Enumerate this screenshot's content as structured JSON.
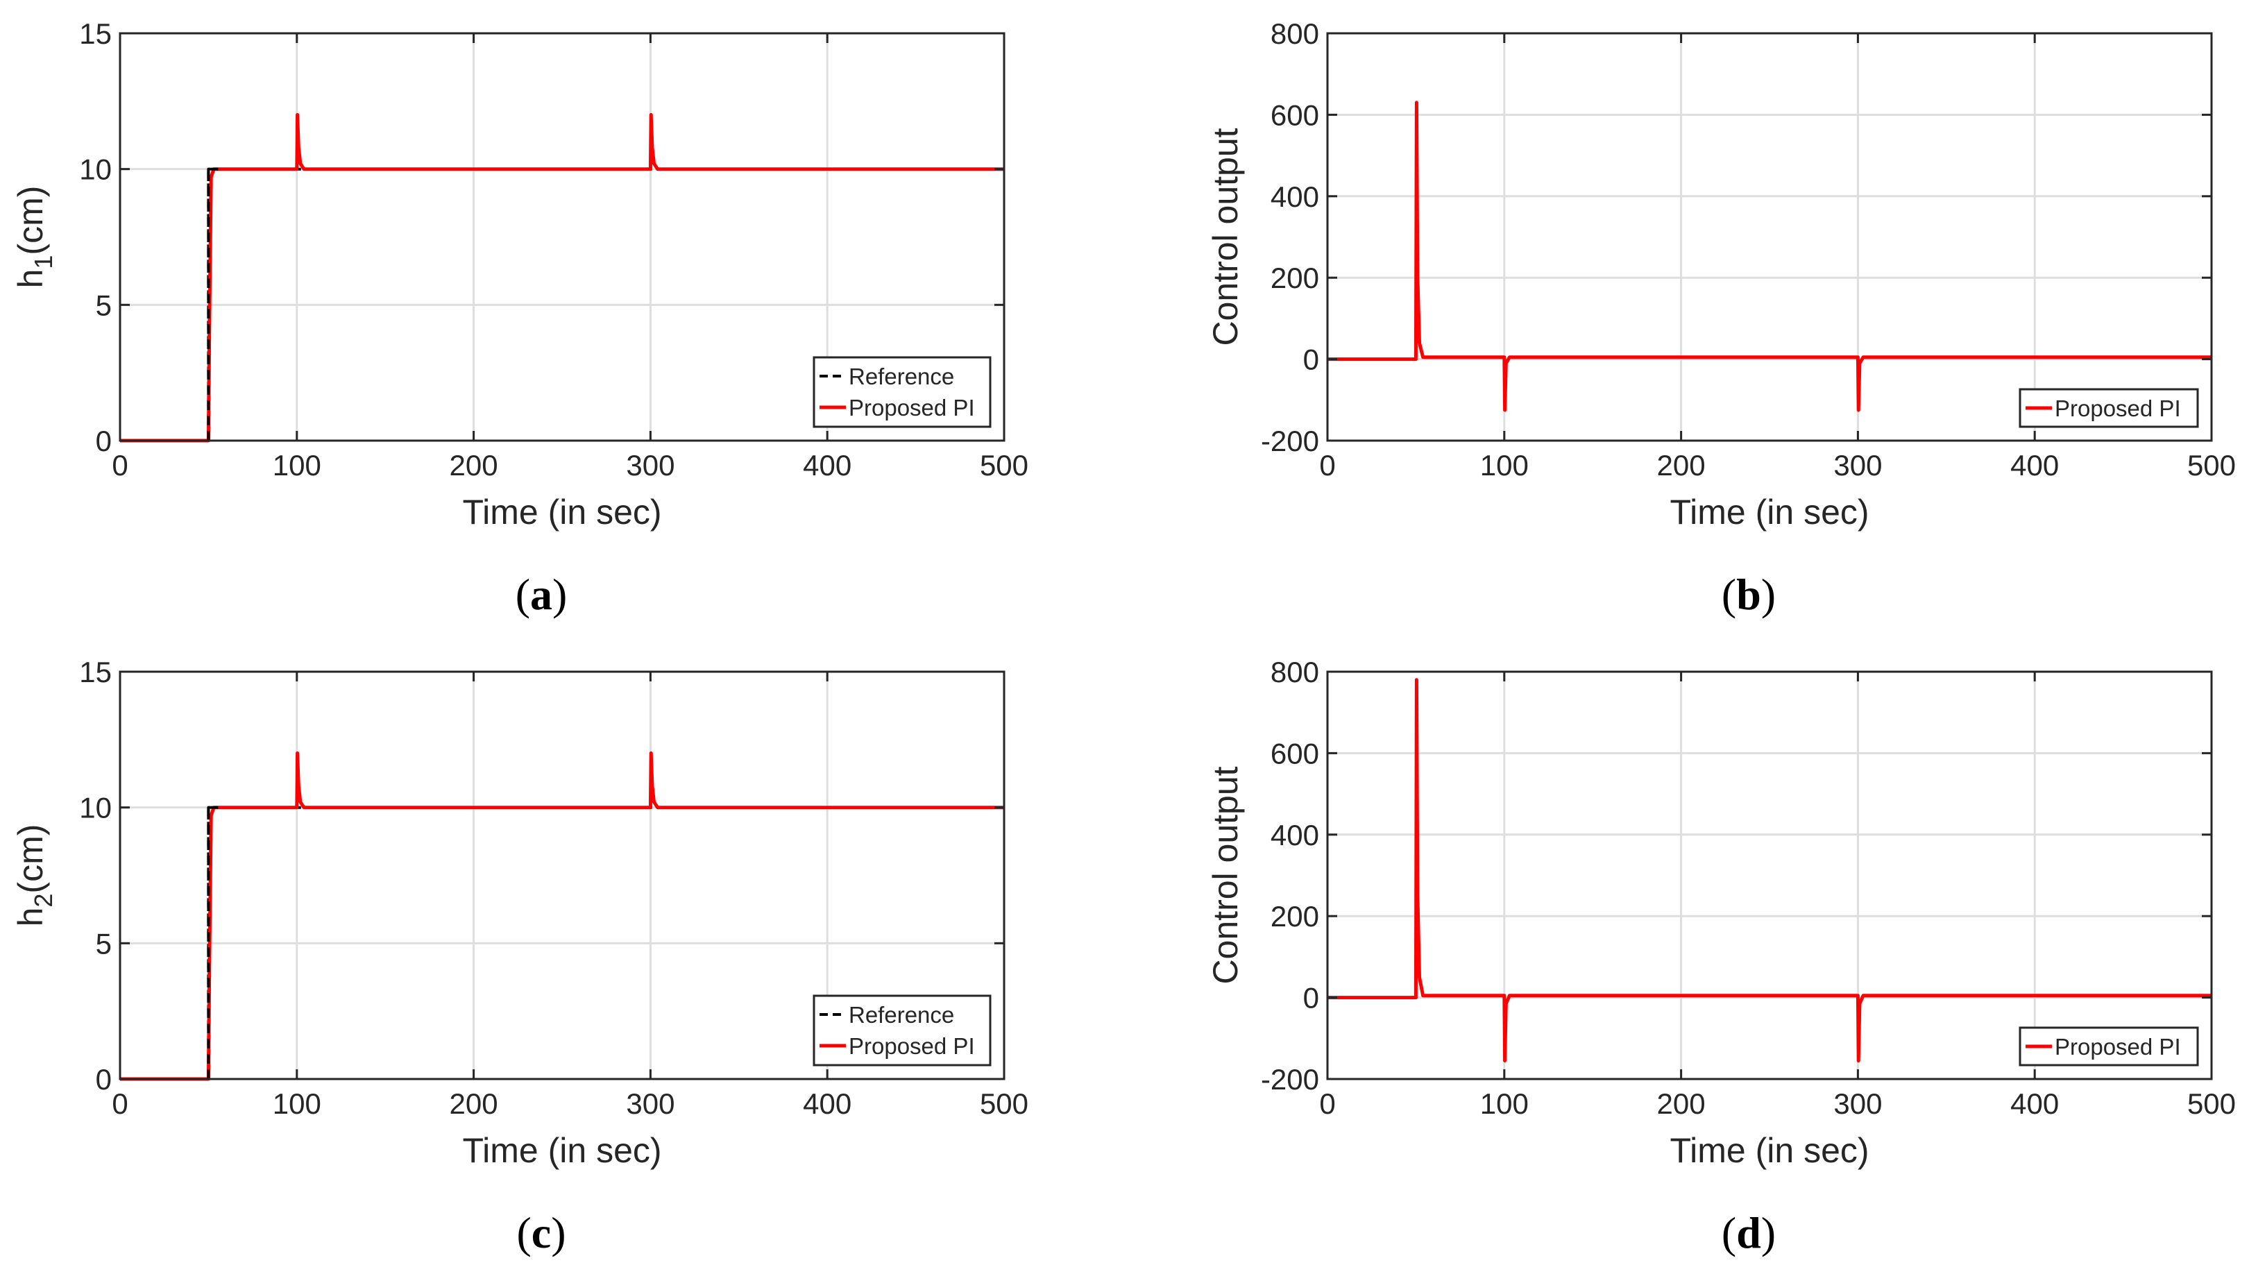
{
  "colors": {
    "reference": "#000000",
    "proposed": "#ff0000",
    "grid": "#dedede",
    "axis": "#262626"
  },
  "chart_data": [
    {
      "panel": "(a)",
      "panel_open": "(",
      "panel_letter": "a",
      "panel_close": ")",
      "type": "line",
      "xlabel": "Time (in sec)",
      "ylabel_main": "h",
      "ylabel_sub": "1",
      "ylabel_unit": "(cm)",
      "xlim": [
        0,
        500
      ],
      "ylim": [
        0,
        15
      ],
      "xticks": [
        "0",
        "100",
        "200",
        "300",
        "400",
        "500"
      ],
      "yticks": [
        "0",
        "5",
        "10",
        "15"
      ],
      "grid": true,
      "legend_position": "bottom-right",
      "series": [
        {
          "name": "Reference",
          "style": "dashed",
          "x": [
            0,
            50,
            50,
            500
          ],
          "y": [
            0,
            0,
            10,
            10
          ]
        },
        {
          "name": "Proposed PI",
          "style": "solid",
          "x": [
            0,
            50,
            50.5,
            51.5,
            53,
            100,
            100.3,
            101,
            102,
            104,
            300,
            300.3,
            301,
            302,
            304,
            500
          ],
          "y": [
            0,
            0,
            4,
            9.7,
            10,
            10,
            12,
            10.8,
            10.2,
            10,
            10,
            12,
            10.8,
            10.2,
            10,
            10
          ]
        }
      ]
    },
    {
      "panel": "(b)",
      "panel_open": "(",
      "panel_letter": "b",
      "panel_close": ")",
      "type": "line",
      "xlabel": "Time (in sec)",
      "ylabel": "Control output",
      "xlim": [
        0,
        500
      ],
      "ylim": [
        -200,
        800
      ],
      "xticks": [
        "0",
        "100",
        "200",
        "300",
        "400",
        "500"
      ],
      "yticks": [
        "-200",
        "0",
        "200",
        "400",
        "600",
        "800"
      ],
      "grid": true,
      "legend_position": "bottom-right",
      "series": [
        {
          "name": "Proposed PI",
          "style": "solid",
          "x": [
            0,
            50,
            50.4,
            51,
            52,
            54,
            100,
            100.3,
            101,
            103,
            300,
            300.3,
            301,
            303,
            500
          ],
          "y": [
            0,
            0,
            630,
            200,
            40,
            5,
            5,
            -125,
            -10,
            5,
            5,
            -125,
            -10,
            5,
            5
          ]
        }
      ]
    },
    {
      "panel": "(c)",
      "panel_open": "(",
      "panel_letter": "c",
      "panel_close": ")",
      "type": "line",
      "xlabel": "Time (in sec)",
      "ylabel_main": "h",
      "ylabel_sub": "2",
      "ylabel_unit": "(cm)",
      "xlim": [
        0,
        500
      ],
      "ylim": [
        0,
        15
      ],
      "xticks": [
        "0",
        "100",
        "200",
        "300",
        "400",
        "500"
      ],
      "yticks": [
        "0",
        "5",
        "10",
        "15"
      ],
      "grid": true,
      "legend_position": "bottom-right",
      "series": [
        {
          "name": "Reference",
          "style": "dashed",
          "x": [
            0,
            50,
            50,
            500
          ],
          "y": [
            0,
            0,
            10,
            10
          ]
        },
        {
          "name": "Proposed PI",
          "style": "solid",
          "x": [
            0,
            50,
            50.5,
            51.5,
            53,
            100,
            100.3,
            101,
            102,
            104,
            300,
            300.3,
            301,
            302,
            304,
            500
          ],
          "y": [
            0,
            0,
            4,
            9.7,
            10,
            10,
            12,
            10.8,
            10.2,
            10,
            10,
            12,
            10.8,
            10.2,
            10,
            10
          ]
        }
      ]
    },
    {
      "panel": "(d)",
      "panel_open": "(",
      "panel_letter": "d",
      "panel_close": ")",
      "type": "line",
      "xlabel": "Time (in sec)",
      "ylabel": "Control output",
      "xlim": [
        0,
        500
      ],
      "ylim": [
        -200,
        800
      ],
      "xticks": [
        "0",
        "100",
        "200",
        "300",
        "400",
        "500"
      ],
      "yticks": [
        "-200",
        "0",
        "200",
        "400",
        "600",
        "800"
      ],
      "grid": true,
      "legend_position": "bottom-right",
      "series": [
        {
          "name": "Proposed PI",
          "style": "solid",
          "x": [
            0,
            50,
            50.4,
            51,
            52,
            54,
            100,
            100.3,
            101,
            103,
            300,
            300.3,
            301,
            303,
            500
          ],
          "y": [
            0,
            0,
            780,
            250,
            50,
            5,
            5,
            -155,
            -15,
            5,
            5,
            -155,
            -15,
            5,
            5
          ]
        }
      ]
    }
  ]
}
